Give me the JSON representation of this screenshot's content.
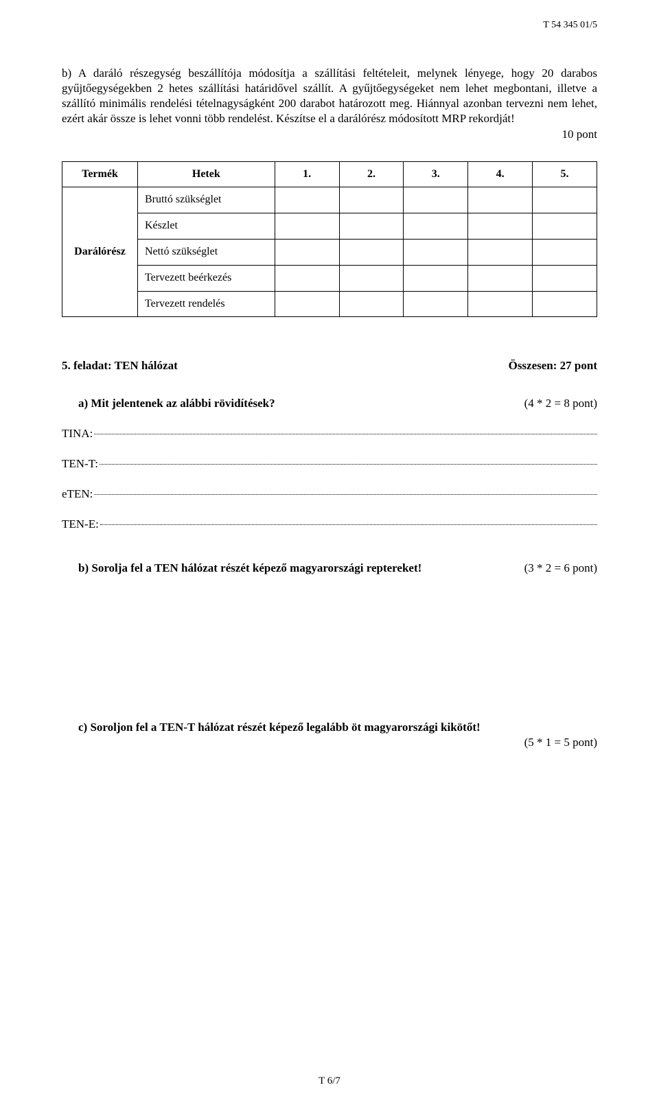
{
  "header_code": "T 54 345 01/5",
  "paragraph_b": "b)  A daráló részegység beszállítója módosítja a szállítási feltételeit, melynek lényege, hogy 20 darabos gyűjtőegységekben 2 hetes szállítási határidővel szállít. A gyűjtőegységeket nem lehet megbontani, illetve a szállító minimális rendelési tételnagyságként 200 darabot határozott meg. Hiánnyal azonban tervezni nem lehet, ezért akár össze is lehet vonni több rendelést. Készítse el a darálórész módosított MRP rekordját!",
  "paragraph_b_points": "10 pont",
  "table": {
    "header": {
      "col_termek": "Termék",
      "col_hetek": "Hetek",
      "cols_num": [
        "1.",
        "2.",
        "3.",
        "4.",
        "5."
      ]
    },
    "product_label": "Darálórész",
    "rows": [
      "Bruttó szükséglet",
      "Készlet",
      "Nettó szükséglet",
      "Tervezett beérkezés",
      "Tervezett rendelés"
    ]
  },
  "task5": {
    "title": "5. feladat: TEN hálózat",
    "total": "Összesen: 27 pont"
  },
  "question_a": {
    "text": "a)  Mit jelentenek az alábbi rövidítések?",
    "points": "(4 * 2 = 8 pont)"
  },
  "abbrev_lines": [
    "TINA: ",
    "TEN-T: ",
    "eTEN: ",
    "TEN-E: "
  ],
  "question_b": {
    "text": "b)  Sorolja fel a TEN hálózat részét képező magyarországi reptereket!",
    "points": "(3 * 2 = 6 pont)"
  },
  "question_c": {
    "text": "c)  Soroljon fel a TEN-T hálózat részét képező legalább öt magyarországi kikötőt!",
    "points": "(5 * 1 = 5 pont)"
  },
  "footer": "T 6/7"
}
